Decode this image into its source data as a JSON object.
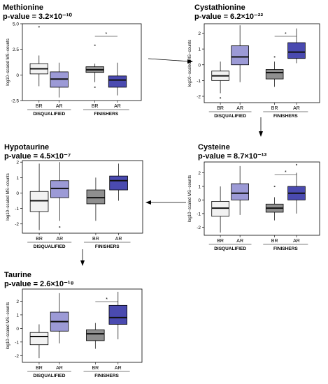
{
  "colors": {
    "br_disq": "#f2f2f2",
    "ar_disq": "#9c9ad6",
    "br_fin": "#8f8f8f",
    "ar_fin": "#4a4ab0",
    "axis": "#000000"
  },
  "ylabel": "log10−scaled MS−counts",
  "group_labels": [
    "DISQUALIFIED",
    "FINISHERS"
  ],
  "category_labels": [
    "BR",
    "AR",
    "BR",
    "AR"
  ],
  "significance_marker": "*",
  "chart_data": [
    {
      "type": "box",
      "title": "Methionine",
      "pvalue": "p-value = 3.2×10⁻¹⁰",
      "ylabel": "log10−scaled MS−counts",
      "ylim": [
        -2.5,
        5.0
      ],
      "yticks": [
        -2.5,
        0,
        2.5,
        5.0
      ],
      "ytick_labels": [
        "-2.5",
        "0",
        "2.5",
        "5.0"
      ],
      "categories": [
        "BR",
        "AR",
        "BR",
        "AR"
      ],
      "groups": [
        "DISQUALIFIED",
        "FINISHERS"
      ],
      "significance": "FINISHERS",
      "boxes": [
        {
          "whisker_low": -1.1,
          "q1": 0.1,
          "median": 0.6,
          "q3": 1.1,
          "whisker_high": 1.9,
          "outliers": [
            4.7
          ]
        },
        {
          "whisker_low": -2.2,
          "q1": -1.2,
          "median": -0.4,
          "q3": 0.3,
          "whisker_high": 1.2,
          "outliers": []
        },
        {
          "whisker_low": -0.7,
          "q1": 0.25,
          "median": 0.5,
          "q3": 0.8,
          "whisker_high": 1.1,
          "outliers": [
            2.9,
            -1.2
          ]
        },
        {
          "whisker_low": -2.0,
          "q1": -1.2,
          "median": -0.5,
          "q3": -0.1,
          "whisker_high": 1.2,
          "outliers": []
        }
      ]
    },
    {
      "type": "box",
      "title": "Cystathionine",
      "pvalue": "p-value = 6.2×10⁻²²",
      "ylabel": "log10−scaled MS−counts",
      "ylim": [
        -2.4,
        2.6
      ],
      "yticks": [
        -2,
        -1,
        0,
        1,
        2
      ],
      "ytick_labels": [
        "-2",
        "-1",
        "0",
        "1",
        "2"
      ],
      "categories": [
        "BR",
        "AR",
        "BR",
        "AR"
      ],
      "groups": [
        "DISQUALIFIED",
        "FINISHERS"
      ],
      "significance": "FINISHERS",
      "boxes": [
        {
          "whisker_low": -1.8,
          "q1": -1.0,
          "median": -0.7,
          "q3": -0.4,
          "whisker_high": 0.2,
          "outliers": [
            -2.1
          ]
        },
        {
          "whisker_low": -1.1,
          "q1": 0.0,
          "median": 0.5,
          "q3": 1.2,
          "whisker_high": 2.5,
          "outliers": []
        },
        {
          "whisker_low": -1.4,
          "q1": -0.9,
          "median": -0.5,
          "q3": -0.3,
          "whisker_high": 0.2,
          "outliers": [
            0.5
          ]
        },
        {
          "whisker_low": 0.1,
          "q1": 0.4,
          "median": 0.8,
          "q3": 1.4,
          "whisker_high": 2.3,
          "outliers": []
        }
      ]
    },
    {
      "type": "box",
      "title": "Hypotaurine",
      "pvalue": "p-value = 4.5×10⁻⁷",
      "ylabel": "log10−scaled MS−counts",
      "ylim": [
        -2.6,
        2.1
      ],
      "yticks": [
        -2,
        -1,
        0,
        1,
        2
      ],
      "ytick_labels": [
        "-2",
        "-1",
        "0",
        "1",
        "2"
      ],
      "categories": [
        "BR",
        "AR",
        "BR",
        "AR"
      ],
      "groups": [
        "DISQUALIFIED",
        "FINISHERS"
      ],
      "significance": "",
      "boxes": [
        {
          "whisker_low": -2.4,
          "q1": -1.2,
          "median": -0.5,
          "q3": 0.1,
          "whisker_high": 1.9,
          "outliers": []
        },
        {
          "whisker_low": -1.8,
          "q1": -0.3,
          "median": 0.3,
          "q3": 0.8,
          "whisker_high": 2.0,
          "outliers": [
            -2.2
          ]
        },
        {
          "whisker_low": -1.8,
          "q1": -0.7,
          "median": -0.3,
          "q3": 0.2,
          "whisker_high": 1.0,
          "outliers": []
        },
        {
          "whisker_low": -0.5,
          "q1": 0.2,
          "median": 0.8,
          "q3": 1.1,
          "whisker_high": 1.9,
          "outliers": []
        }
      ]
    },
    {
      "type": "box",
      "title": "Cysteine",
      "pvalue": "p-value = 8.7×10⁻¹³",
      "ylabel": "log10−scaled MS−counts",
      "ylim": [
        -2.6,
        2.8
      ],
      "yticks": [
        -2,
        -1,
        0,
        1,
        2
      ],
      "ytick_labels": [
        "-2",
        "-1",
        "0",
        "1",
        "2"
      ],
      "categories": [
        "BR",
        "AR",
        "BR",
        "AR"
      ],
      "groups": [
        "DISQUALIFIED",
        "FINISHERS"
      ],
      "significance": "FINISHERS",
      "boxes": [
        {
          "whisker_low": -2.4,
          "q1": -1.2,
          "median": -0.6,
          "q3": -0.1,
          "whisker_high": 1.0,
          "outliers": []
        },
        {
          "whisker_low": -1.1,
          "q1": 0.0,
          "median": 0.5,
          "q3": 1.2,
          "whisker_high": 2.5,
          "outliers": []
        },
        {
          "whisker_low": -1.5,
          "q1": -0.9,
          "median": -0.6,
          "q3": -0.3,
          "whisker_high": 0.2,
          "outliers": [
            1.0
          ]
        },
        {
          "whisker_low": -1.0,
          "q1": 0.0,
          "median": 0.5,
          "q3": 1.0,
          "whisker_high": 2.0,
          "outliers": [
            2.6
          ]
        }
      ]
    },
    {
      "type": "box",
      "title": "Taurine",
      "pvalue": "p-value = 2.6×10⁻¹⁸",
      "ylabel": "log10−scaled MS−counts",
      "ylim": [
        -2.5,
        2.9
      ],
      "yticks": [
        -2,
        -1,
        0,
        1,
        2
      ],
      "ytick_labels": [
        "-2",
        "-1",
        "0",
        "1",
        "2"
      ],
      "categories": [
        "BR",
        "AR",
        "BR",
        "AR"
      ],
      "groups": [
        "DISQUALIFIED",
        "FINISHERS"
      ],
      "significance": "FINISHERS",
      "boxes": [
        {
          "whisker_low": -2.2,
          "q1": -1.2,
          "median": -0.6,
          "q3": -0.3,
          "whisker_high": 0.3,
          "outliers": []
        },
        {
          "whisker_low": -1.1,
          "q1": -0.2,
          "median": 0.5,
          "q3": 1.2,
          "whisker_high": 2.6,
          "outliers": []
        },
        {
          "whisker_low": -1.5,
          "q1": -0.9,
          "median": -0.4,
          "q3": -0.1,
          "whisker_high": 0.4,
          "outliers": []
        },
        {
          "whisker_low": -0.8,
          "q1": 0.3,
          "median": 0.8,
          "q3": 1.7,
          "whisker_high": 2.7,
          "outliers": []
        }
      ]
    }
  ]
}
